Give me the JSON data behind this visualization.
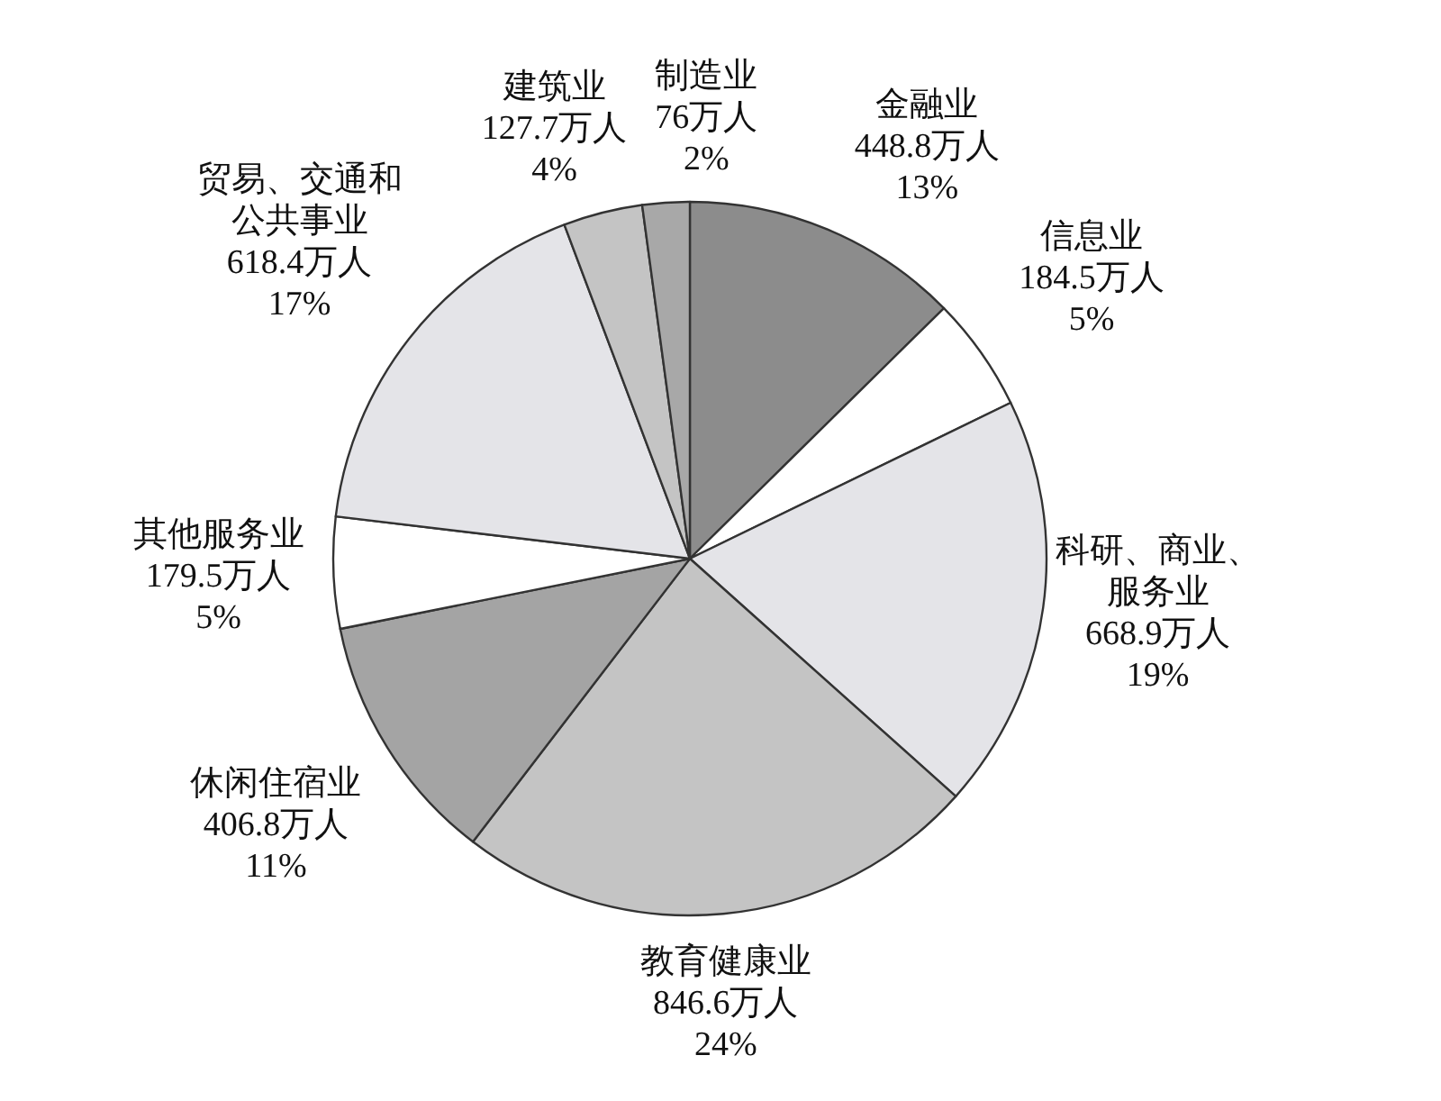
{
  "chart_data": {
    "type": "pie",
    "categories": [
      "金融业",
      "信息业",
      "科研、商业、服务业",
      "教育健康业",
      "休闲住宿业",
      "其他服务业",
      "贸易、交通和公共事业",
      "建筑业",
      "制造业"
    ],
    "values": [
      448.8,
      184.5,
      668.9,
      846.6,
      406.8,
      179.5,
      618.4,
      127.7,
      76
    ],
    "value_labels": [
      "448.8万人 13%",
      "184.5万人 5%",
      "668.9万人 19%",
      "846.6万人 24%",
      "406.8万人 11%",
      "179.5万人 5%",
      "618.4万人 17%",
      "127.7万人 4%",
      "76万人 2%"
    ],
    "colors": [
      "#8c8c8c",
      "#ffffff",
      "#e4e4e8",
      "#c4c4c4",
      "#a4a4a4",
      "#ffffff",
      "#e4e4e8",
      "#c4c4c4",
      "#a8a8a8"
    ]
  }
}
